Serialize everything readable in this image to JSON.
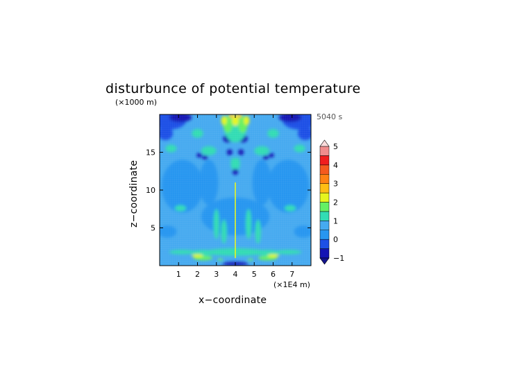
{
  "chart_data": {
    "type": "heatmap",
    "title": "disturbunce of potential temperature",
    "xlabel": "x−coordinate",
    "ylabel": "z−coordinate",
    "x_unit": "(×1E4 m)",
    "y_unit": "(×1000 m)",
    "time_label": "5040 s",
    "xlim": [
      0,
      8
    ],
    "ylim": [
      0,
      20
    ],
    "x_ticks": [
      "1",
      "2",
      "3",
      "4",
      "5",
      "6",
      "7"
    ],
    "y_ticks": [
      "5",
      "10",
      "15"
    ],
    "colorbar": {
      "levels": [
        -1,
        -0.5,
        0,
        0.5,
        1,
        1.5,
        2,
        2.5,
        3,
        3.5,
        4,
        4.5,
        5
      ],
      "tick_labels": [
        "−1",
        "0",
        "1",
        "2",
        "3",
        "4",
        "5"
      ],
      "colors": [
        "#1414b4",
        "#1e50e6",
        "#2896f0",
        "#46aaf0",
        "#32dcb4",
        "#64f064",
        "#e6f51e",
        "#ffbe14",
        "#ff8214",
        "#f55a1e",
        "#f01e1e",
        "#f08c8c"
      ],
      "extend": "both"
    },
    "field_description": "mostly slightly positive (0 to 0.5); negative pockets near top corners; strong positive plume at x≈4, z 16–20"
  }
}
